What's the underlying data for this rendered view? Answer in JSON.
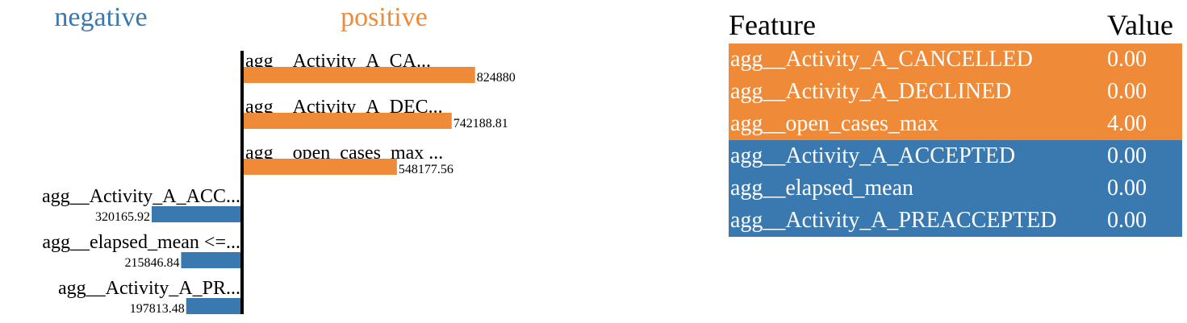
{
  "chart_data": {
    "type": "bar",
    "headings": {
      "negative": "negative",
      "positive": "positive"
    },
    "positive": [
      {
        "label": "agg__Activity_A_CA...",
        "value": 824880,
        "value_label": "824880"
      },
      {
        "label": "agg__Activity_A_DEC...",
        "value": 742188.81,
        "value_label": "742188.81"
      },
      {
        "label": "agg__open_cases_max ...",
        "value": 548177.56,
        "value_label": "548177.56"
      }
    ],
    "negative": [
      {
        "label": "agg__Activity_A_ACC...",
        "value": 320165.92,
        "value_label": "320165.92"
      },
      {
        "label": "agg__elapsed_mean <=...",
        "value": 215846.84,
        "value_label": "215846.84"
      },
      {
        "label": "agg__Activity_A_PR...",
        "value": 197813.48,
        "value_label": "197813.48"
      }
    ],
    "colors": {
      "positive": "#ef8a39",
      "negative": "#3a78b0"
    }
  },
  "table": {
    "header": {
      "feature": "Feature",
      "value": "Value"
    },
    "rows": [
      {
        "feature": "agg__Activity_A_CANCELLED",
        "value": "0.00",
        "sign": "positive"
      },
      {
        "feature": "agg__Activity_A_DECLINED",
        "value": "0.00",
        "sign": "positive"
      },
      {
        "feature": "agg__open_cases_max",
        "value": "4.00",
        "sign": "positive"
      },
      {
        "feature": "agg__Activity_A_ACCEPTED",
        "value": "0.00",
        "sign": "negative"
      },
      {
        "feature": "agg__elapsed_mean",
        "value": "0.00",
        "sign": "negative"
      },
      {
        "feature": "agg__Activity_A_PREACCEPTED",
        "value": "0.00",
        "sign": "negative"
      }
    ]
  }
}
